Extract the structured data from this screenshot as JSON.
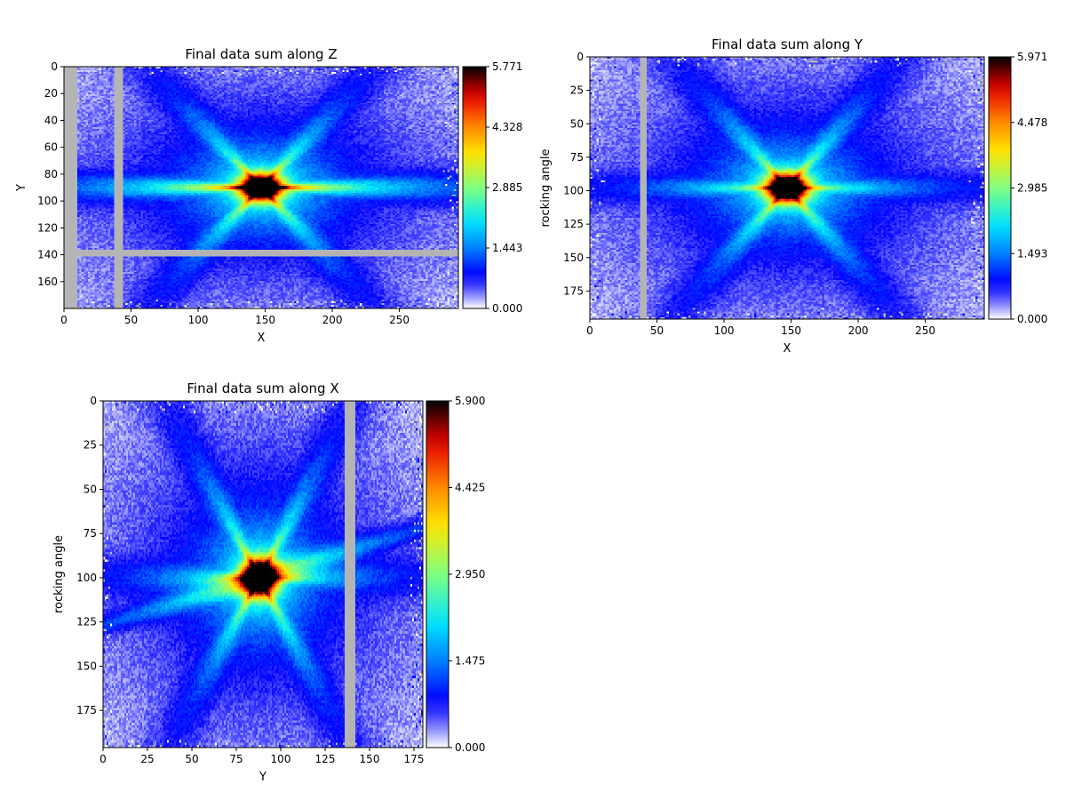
{
  "figure": {
    "background": "#ffffff",
    "masked_color": "#b4b4b4"
  },
  "chart_data": [
    {
      "type": "heatmap",
      "title": "Final data sum along Z",
      "xlabel": "X",
      "ylabel": "Y",
      "xlim": [
        0,
        294
      ],
      "ylim": [
        180,
        0
      ],
      "xticks": [
        0,
        50,
        100,
        150,
        200,
        250
      ],
      "yticks": [
        0,
        20,
        40,
        60,
        80,
        100,
        120,
        140,
        160
      ],
      "colorbar": {
        "cmap": "jet-white",
        "range": [
          0,
          5.771
        ],
        "ticks": [
          "0.000",
          "1.443",
          "2.885",
          "4.328",
          "5.771"
        ]
      },
      "peak": {
        "x": 147,
        "y": 90,
        "value": 5.771
      },
      "masked_regions": [
        {
          "orientation": "vertical",
          "from": 0,
          "to": 9
        },
        {
          "orientation": "vertical",
          "from": 38,
          "to": 44
        },
        {
          "orientation": "horizontal",
          "from": 136,
          "to": 142
        }
      ]
    },
    {
      "type": "heatmap",
      "title": "Final data sum along Y",
      "xlabel": "X",
      "ylabel": "rocking angle",
      "xlim": [
        0,
        294
      ],
      "ylim": [
        196,
        0
      ],
      "xticks": [
        0,
        50,
        100,
        150,
        200,
        250
      ],
      "yticks": [
        0,
        25,
        50,
        75,
        100,
        125,
        150,
        175
      ],
      "colorbar": {
        "cmap": "jet-white",
        "range": [
          0,
          5.971
        ],
        "ticks": [
          "0.000",
          "1.493",
          "2.985",
          "4.478",
          "5.971"
        ]
      },
      "peak": {
        "x": 147,
        "y": 98,
        "value": 5.971
      },
      "masked_regions": [
        {
          "orientation": "vertical",
          "from": 37,
          "to": 43
        }
      ]
    },
    {
      "type": "heatmap",
      "title": "Final data sum along X",
      "xlabel": "Y",
      "ylabel": "rocking angle",
      "xlim": [
        0,
        180
      ],
      "ylim": [
        196,
        0
      ],
      "xticks": [
        0,
        25,
        50,
        75,
        100,
        125,
        150,
        175
      ],
      "yticks": [
        0,
        25,
        50,
        75,
        100,
        125,
        150,
        175
      ],
      "colorbar": {
        "cmap": "jet-white",
        "range": [
          0,
          5.9
        ],
        "ticks": [
          "0.000",
          "1.475",
          "2.950",
          "4.425",
          "5.900"
        ]
      },
      "peak": {
        "x": 88,
        "y": 100,
        "value": 5.9
      },
      "masked_regions": [
        {
          "orientation": "vertical",
          "from": 136,
          "to": 142
        }
      ]
    }
  ]
}
